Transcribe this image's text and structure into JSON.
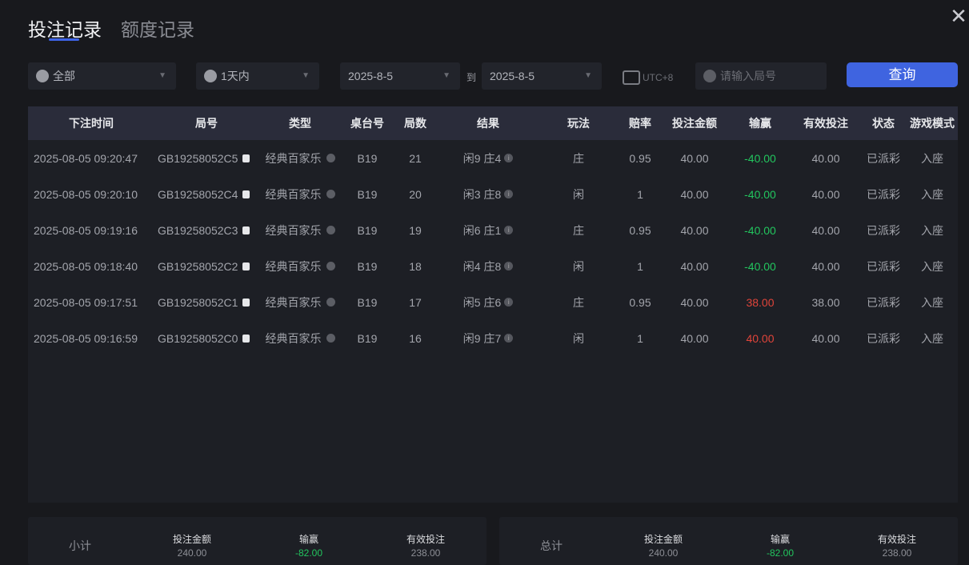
{
  "tabs": [
    "投注记录",
    "额度记录"
  ],
  "filters": {
    "game": "全部",
    "period": "1天内",
    "date_from": "2025-8-5",
    "to_label": "到",
    "date_to": "2025-8-5",
    "timezone": "UTC+8",
    "round_placeholder": "请输入局号",
    "query_button": "查询"
  },
  "colors": {
    "accent": "#3f64e0",
    "loss": "#22c55e",
    "win": "#e0443a"
  },
  "table": {
    "headers": [
      "下注时间",
      "局号",
      "类型",
      "桌台号",
      "局数",
      "结果",
      "玩法",
      "赔率",
      "投注金额",
      "输赢",
      "有效投注",
      "状态",
      "游戏模式"
    ],
    "rows": [
      [
        "2025-08-05 09:20:47",
        "GB19258052C5",
        "经典百家乐",
        "B19",
        "21",
        "闲9 庄4",
        "庄",
        "0.95",
        "40.00",
        "-40.00",
        "40.00",
        "已派彩",
        "入座"
      ],
      [
        "2025-08-05 09:20:10",
        "GB19258052C4",
        "经典百家乐",
        "B19",
        "20",
        "闲3 庄8",
        "闲",
        "1",
        "40.00",
        "-40.00",
        "40.00",
        "已派彩",
        "入座"
      ],
      [
        "2025-08-05 09:19:16",
        "GB19258052C3",
        "经典百家乐",
        "B19",
        "19",
        "闲6 庄1",
        "庄",
        "0.95",
        "40.00",
        "-40.00",
        "40.00",
        "已派彩",
        "入座"
      ],
      [
        "2025-08-05 09:18:40",
        "GB19258052C2",
        "经典百家乐",
        "B19",
        "18",
        "闲4 庄8",
        "闲",
        "1",
        "40.00",
        "-40.00",
        "40.00",
        "已派彩",
        "入座"
      ],
      [
        "2025-08-05 09:17:51",
        "GB19258052C1",
        "经典百家乐",
        "B19",
        "17",
        "闲5 庄6",
        "庄",
        "0.95",
        "40.00",
        "38.00",
        "38.00",
        "已派彩",
        "入座"
      ],
      [
        "2025-08-05 09:16:59",
        "GB19258052C0",
        "经典百家乐",
        "B19",
        "16",
        "闲9 庄7",
        "闲",
        "1",
        "40.00",
        "40.00",
        "40.00",
        "已派彩",
        "入座"
      ]
    ]
  },
  "subtotal": {
    "label": "小计",
    "amount_label": "投注金额",
    "amount": "240.00",
    "winloss_label": "输赢",
    "winloss": "-82.00",
    "valid_label": "有效投注",
    "valid": "238.00"
  },
  "total": {
    "label": "总计",
    "amount_label": "投注金额",
    "amount": "240.00",
    "winloss_label": "输赢",
    "winloss": "-82.00",
    "valid_label": "有效投注",
    "valid": "238.00"
  }
}
